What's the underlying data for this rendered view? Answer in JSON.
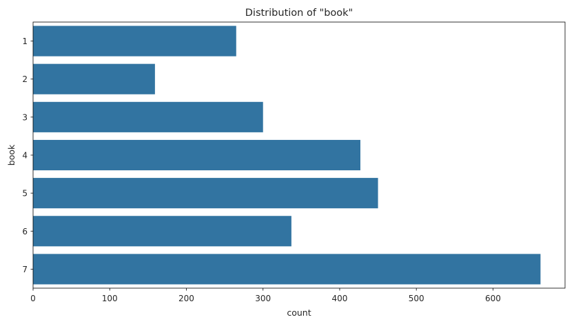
{
  "chart_data": {
    "type": "bar",
    "orientation": "horizontal",
    "title": "Distribution of \"book\"",
    "xlabel": "count",
    "ylabel": "book",
    "categories": [
      "1",
      "2",
      "3",
      "4",
      "5",
      "6",
      "7"
    ],
    "values": [
      265,
      159,
      300,
      427,
      450,
      337,
      662
    ],
    "xlim": [
      0,
      694
    ],
    "xticks": [
      0,
      100,
      200,
      300,
      400,
      500,
      600
    ],
    "grid": false,
    "legend": "none",
    "bar_color": "#3274a1"
  }
}
